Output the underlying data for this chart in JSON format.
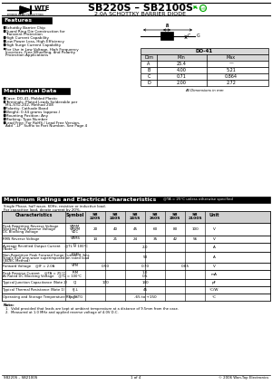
{
  "title": "SB220S – SB2100S",
  "subtitle": "2.0A SCHOTTKY BARRIER DIODE",
  "features_title": "Features",
  "features": [
    "Schottky Barrier Chip",
    "Guard Ring Die Construction for\n    Transient Protection",
    "High Current Capability",
    "Low Power Loss, High Efficiency",
    "High Surge Current Capability",
    "For Use in Low Voltage, High Frequency\n    Inverters, Free Wheeling, and Polarity\n    Protection Applications"
  ],
  "mech_title": "Mechanical Data",
  "mech_items": [
    "Case: DO-41, Molded Plastic",
    "Terminals: Plated Leads Solderable per\n    MIL-STD-202, Method 208",
    "Polarity: Cathode Band",
    "Weight: 0.34 grams (approx.)",
    "Mounting Position: Any",
    "Marking: Type Number",
    "Lead Free: For RoHS / Lead Free Version,\n    Add \"-LF\" Suffix to Part Number, See Page 4"
  ],
  "max_ratings_title": "Maximum Ratings and Electrical Characteristics",
  "max_ratings_note": "@TA = 25°C unless otherwise specified",
  "single_phase_note_1": "Single Phase, half wave, 60Hz, resistive or inductive load.",
  "single_phase_note_2": "For capacitive load, derate current by 20%.",
  "part_names": [
    "SB\n220S",
    "SB\n240S",
    "SB\n245S",
    "SB\n260S",
    "SB\n280S",
    "SB\n2100S"
  ],
  "table_rows": [
    {
      "chars": "Peak Repetitive Reverse Voltage\nWorking Peak Reverse Voltage\nDC Blocking Voltage",
      "sym": "VRRM\nVRWM\nVDC",
      "vals": [
        "20",
        "40",
        "45",
        "60",
        "80",
        "100"
      ],
      "unit": "V",
      "rh": 14,
      "span": false
    },
    {
      "chars": "RMS Reverse Voltage",
      "sym": "VRMS",
      "vals": [
        "14",
        "21",
        "24",
        "35",
        "42",
        "56"
      ],
      "unit": "V",
      "rh": 8,
      "span": false
    },
    {
      "chars": "Average Rectified Output Current    @TL = 100°C\n(Note 1)",
      "sym": "IO",
      "vals": [
        "",
        "",
        "2.0",
        "",
        "",
        ""
      ],
      "unit": "A",
      "rh": 10,
      "span": true,
      "span_val": "2.0"
    },
    {
      "chars": "Non-Repetitive Peak Forward Surge Current 8.3ms\nSingle half sine-wave superimposed on rated load\n(JEDEC Method)",
      "sym": "IFSM",
      "vals": [
        "",
        "",
        "50",
        "",
        "",
        ""
      ],
      "unit": "A",
      "rh": 12,
      "span": true,
      "span_val": "50"
    },
    {
      "chars": "Forward Voltage    @IF = 2.0A",
      "sym": "VFM",
      "vals": [
        "",
        "0.50",
        "",
        "0.70",
        "",
        "0.85"
      ],
      "unit": "V",
      "rh": 8,
      "span": false,
      "groups": [
        [
          0,
          1,
          "0.50"
        ],
        [
          2,
          3,
          "0.70"
        ],
        [
          4,
          5,
          "0.85"
        ]
      ]
    },
    {
      "chars": "Peak Reverse Current    @TA = 25°C\nAt Rated DC Blocking Voltage    @TL = 100°C",
      "sym": "IRM",
      "vals": [
        "",
        "",
        "0.5\n1.0",
        "",
        "",
        ""
      ],
      "unit": "mA",
      "rh": 10,
      "span": true,
      "span_val": "0.5\n1.0"
    },
    {
      "chars": "Typical Junction Capacitance (Note 2)",
      "sym": "CJ",
      "vals": [
        "",
        "170",
        "",
        "140",
        "",
        ""
      ],
      "unit": "pF",
      "rh": 8,
      "span": false,
      "groups": [
        [
          0,
          1,
          "170"
        ],
        [
          2,
          3,
          "140"
        ]
      ]
    },
    {
      "chars": "Typical Thermal Resistance (Note 1)",
      "sym": "θJ-L",
      "vals": [
        "",
        "",
        "45",
        "",
        "",
        ""
      ],
      "unit": "°C/W",
      "rh": 8,
      "span": true,
      "span_val": "45"
    },
    {
      "chars": "Operating and Storage Temperature Range",
      "sym": "TJ, TSTG",
      "vals": [
        "",
        "",
        "-65 to +150",
        "",
        "",
        ""
      ],
      "unit": "°C",
      "rh": 8,
      "span": true,
      "span_val": "-65 to +150"
    }
  ],
  "notes": [
    "1.  Valid provided that leads are kept at ambient temperature at a distance of 9.5mm from the case.",
    "2.  Measured at 1.0 MHz and applied reverse voltage of 4.0V D.C."
  ],
  "footer_left": "SB220S – SB2100S",
  "footer_center": "1 of 4",
  "footer_right": "© 2006 Won-Top Electronics",
  "do41_rows": [
    [
      "A",
      "25.4",
      "—"
    ],
    [
      "B",
      "4.00",
      "5.21"
    ],
    [
      "C",
      "0.71",
      "0.864"
    ],
    [
      "D",
      "2.00",
      "2.72"
    ]
  ],
  "bg_color": "#ffffff",
  "green_color": "#00aa00"
}
